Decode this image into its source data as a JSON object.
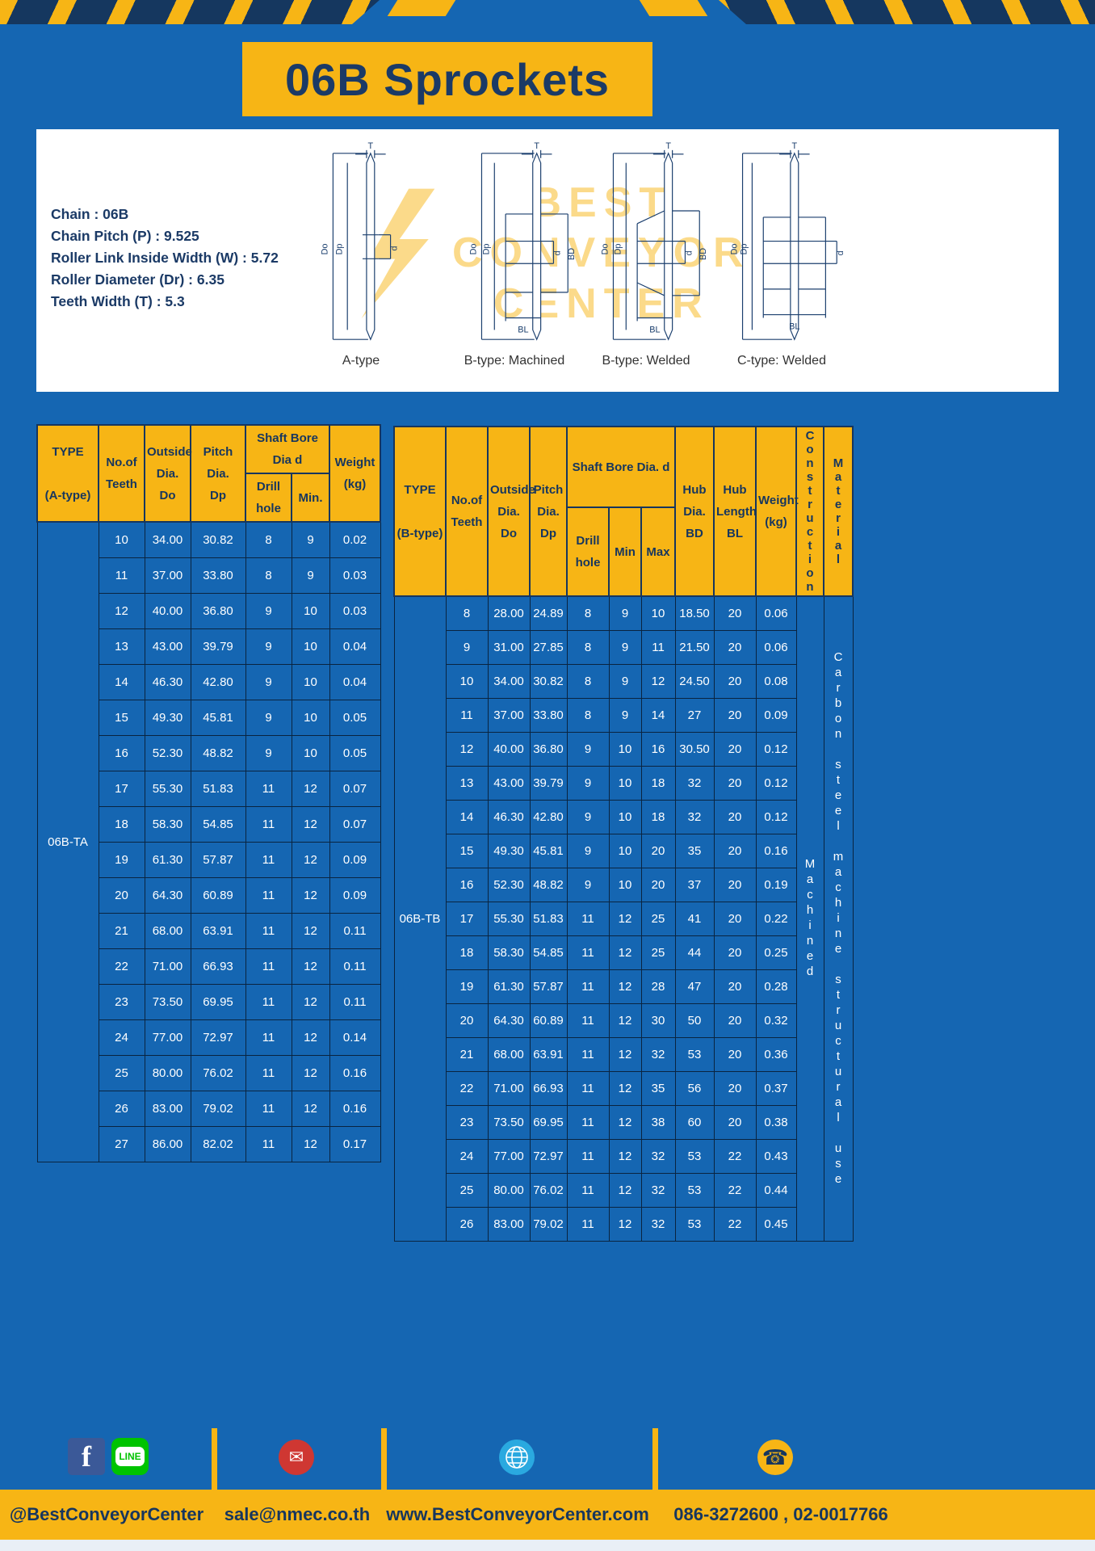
{
  "page": {
    "title": "06B Sprockets"
  },
  "colors": {
    "blue": "#1566b2",
    "yellow": "#f7b515",
    "navy": "#17365e"
  },
  "specs": {
    "lines": [
      "Chain : 06B",
      "Chain Pitch (P) : 9.525",
      "Roller Link Inside Width (W) : 5.72",
      "Roller Diameter (Dr) : 6.35",
      "Teeth Width (T) : 5.3"
    ]
  },
  "diagrams": {
    "labels": [
      "A-type",
      "B-type: Machined",
      "B-type: Welded",
      "C-type: Welded"
    ],
    "dims": {
      "t": "T",
      "do": "Do",
      "dp": "Dp",
      "d": "d",
      "bd": "BD",
      "bl": "BL"
    }
  },
  "watermark": {
    "lines": [
      "BEST",
      "CONVEYOR",
      "CENTER"
    ]
  },
  "table_a": {
    "headers": {
      "type": "TYPE\n\n(A-type)",
      "teeth": "No.of\nTeeth",
      "outside": "Outside\nDia.\nDo",
      "pitch": "Pitch Dia.\nDp",
      "bore_group": "Shaft Bore Dia d",
      "drill": "Drill hole",
      "min": "Min.",
      "weight": "Weight\n(kg)"
    },
    "type_value": "06B-TA",
    "rows": [
      [
        "10",
        "34.00",
        "30.82",
        "8",
        "9",
        "0.02"
      ],
      [
        "11",
        "37.00",
        "33.80",
        "8",
        "9",
        "0.03"
      ],
      [
        "12",
        "40.00",
        "36.80",
        "9",
        "10",
        "0.03"
      ],
      [
        "13",
        "43.00",
        "39.79",
        "9",
        "10",
        "0.04"
      ],
      [
        "14",
        "46.30",
        "42.80",
        "9",
        "10",
        "0.04"
      ],
      [
        "15",
        "49.30",
        "45.81",
        "9",
        "10",
        "0.05"
      ],
      [
        "16",
        "52.30",
        "48.82",
        "9",
        "10",
        "0.05"
      ],
      [
        "17",
        "55.30",
        "51.83",
        "11",
        "12",
        "0.07"
      ],
      [
        "18",
        "58.30",
        "54.85",
        "11",
        "12",
        "0.07"
      ],
      [
        "19",
        "61.30",
        "57.87",
        "11",
        "12",
        "0.09"
      ],
      [
        "20",
        "64.30",
        "60.89",
        "11",
        "12",
        "0.09"
      ],
      [
        "21",
        "68.00",
        "63.91",
        "11",
        "12",
        "0.11"
      ],
      [
        "22",
        "71.00",
        "66.93",
        "11",
        "12",
        "0.11"
      ],
      [
        "23",
        "73.50",
        "69.95",
        "11",
        "12",
        "0.11"
      ],
      [
        "24",
        "77.00",
        "72.97",
        "11",
        "12",
        "0.14"
      ],
      [
        "25",
        "80.00",
        "76.02",
        "11",
        "12",
        "0.16"
      ],
      [
        "26",
        "83.00",
        "79.02",
        "11",
        "12",
        "0.16"
      ],
      [
        "27",
        "86.00",
        "82.02",
        "11",
        "12",
        "0.17"
      ]
    ]
  },
  "table_b": {
    "headers": {
      "type": "TYPE\n\n(B-type)",
      "teeth": "No.of\nTeeth",
      "outside": "Outside\nDia.\nDo",
      "pitch": "Pitch\nDia.\nDp",
      "bore_group": "Shaft Bore Dia.  d",
      "drill": "Drill hole",
      "min": "Min",
      "max": "Max",
      "hub_dia": "Hub\nDia.\nBD",
      "hub_len": "Hub\nLength\nBL",
      "weight": "Weight\n(kg)",
      "construction": "Construction",
      "material": "Material"
    },
    "type_value": "06B-TB",
    "construction_value": "Machined",
    "material_value": "Carbon steel machine structural use",
    "rows": [
      [
        "8",
        "28.00",
        "24.89",
        "8",
        "9",
        "10",
        "18.50",
        "20",
        "0.06"
      ],
      [
        "9",
        "31.00",
        "27.85",
        "8",
        "9",
        "11",
        "21.50",
        "20",
        "0.06"
      ],
      [
        "10",
        "34.00",
        "30.82",
        "8",
        "9",
        "12",
        "24.50",
        "20",
        "0.08"
      ],
      [
        "11",
        "37.00",
        "33.80",
        "8",
        "9",
        "14",
        "27",
        "20",
        "0.09"
      ],
      [
        "12",
        "40.00",
        "36.80",
        "9",
        "10",
        "16",
        "30.50",
        "20",
        "0.12"
      ],
      [
        "13",
        "43.00",
        "39.79",
        "9",
        "10",
        "18",
        "32",
        "20",
        "0.12"
      ],
      [
        "14",
        "46.30",
        "42.80",
        "9",
        "10",
        "18",
        "32",
        "20",
        "0.12"
      ],
      [
        "15",
        "49.30",
        "45.81",
        "9",
        "10",
        "20",
        "35",
        "20",
        "0.16"
      ],
      [
        "16",
        "52.30",
        "48.82",
        "9",
        "10",
        "20",
        "37",
        "20",
        "0.19"
      ],
      [
        "17",
        "55.30",
        "51.83",
        "11",
        "12",
        "25",
        "41",
        "20",
        "0.22"
      ],
      [
        "18",
        "58.30",
        "54.85",
        "11",
        "12",
        "25",
        "44",
        "20",
        "0.25"
      ],
      [
        "19",
        "61.30",
        "57.87",
        "11",
        "12",
        "28",
        "47",
        "20",
        "0.28"
      ],
      [
        "20",
        "64.30",
        "60.89",
        "11",
        "12",
        "30",
        "50",
        "20",
        "0.32"
      ],
      [
        "21",
        "68.00",
        "63.91",
        "11",
        "12",
        "32",
        "53",
        "20",
        "0.36"
      ],
      [
        "22",
        "71.00",
        "66.93",
        "11",
        "12",
        "35",
        "56",
        "20",
        "0.37"
      ],
      [
        "23",
        "73.50",
        "69.95",
        "11",
        "12",
        "38",
        "60",
        "20",
        "0.38"
      ],
      [
        "24",
        "77.00",
        "72.97",
        "11",
        "12",
        "32",
        "53",
        "22",
        "0.43"
      ],
      [
        "25",
        "80.00",
        "76.02",
        "11",
        "12",
        "32",
        "53",
        "22",
        "0.44"
      ],
      [
        "26",
        "83.00",
        "79.02",
        "11",
        "12",
        "32",
        "53",
        "22",
        "0.45"
      ]
    ]
  },
  "footer": {
    "facebook_handle": "@BestConveyorCenter",
    "email": "sale@nmec.co.th",
    "website": "www.BestConveyorCenter.com",
    "phones": "086-3272600 , 02-0017766",
    "line_label": "LINE"
  }
}
